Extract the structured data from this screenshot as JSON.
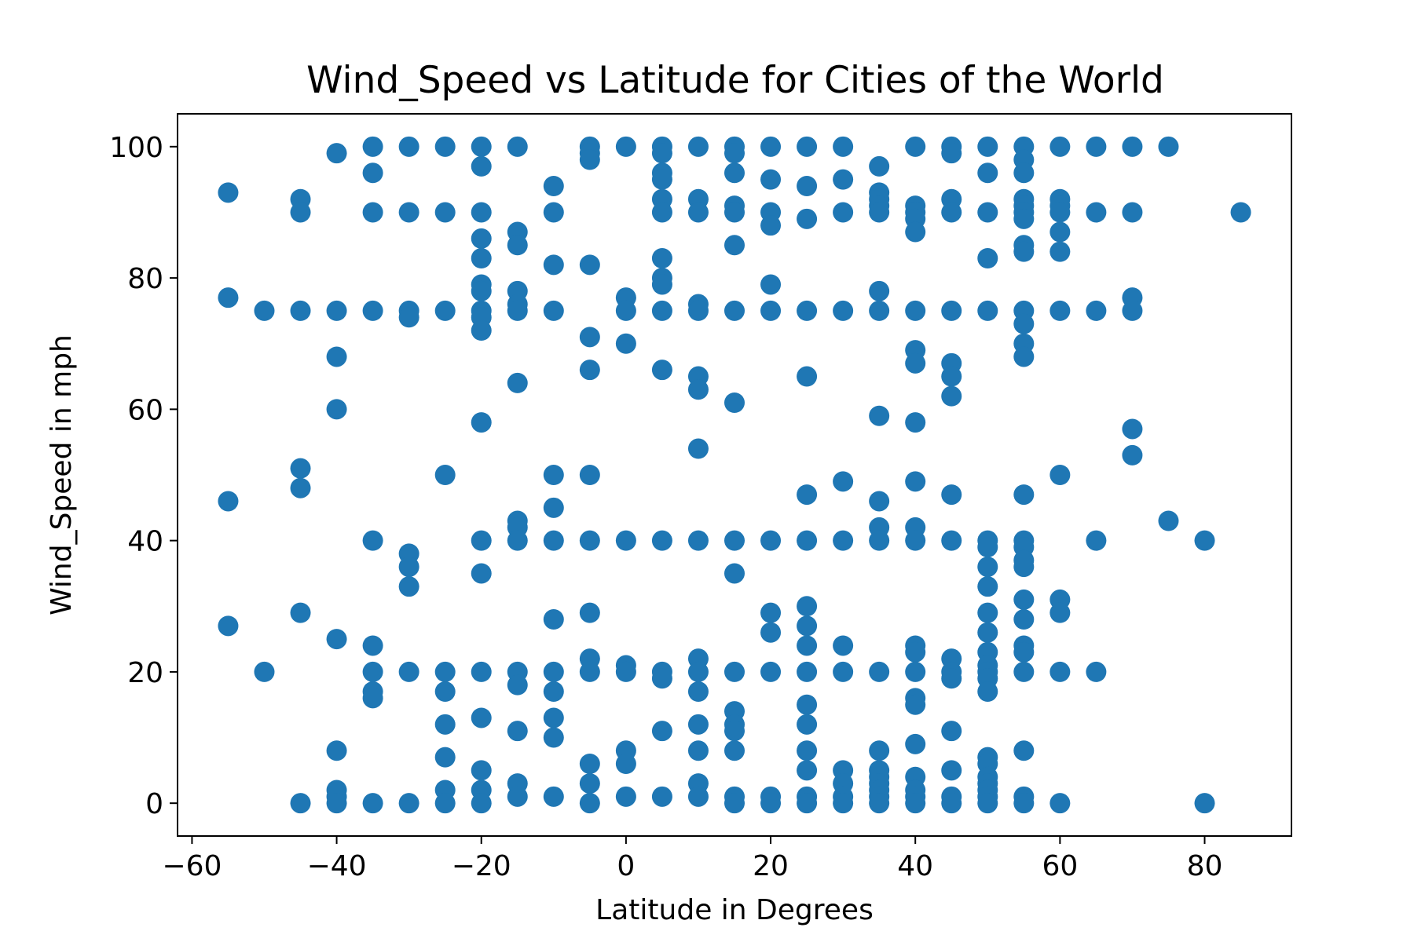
{
  "chart_data": {
    "type": "scatter",
    "title": "Wind_Speed vs Latitude for Cities of the World",
    "xlabel": "Latitude in Degrees",
    "ylabel": "Wind_Speed in mph",
    "xlim": [
      -62,
      92
    ],
    "ylim": [
      -5,
      105
    ],
    "xticks": [
      -60,
      -40,
      -20,
      0,
      20,
      40,
      60,
      80
    ],
    "xtick_labels": [
      "−60",
      "−40",
      "−20",
      "0",
      "20",
      "40",
      "60",
      "80"
    ],
    "yticks": [
      0,
      20,
      40,
      60,
      80,
      100
    ],
    "ytick_labels": [
      "0",
      "20",
      "40",
      "60",
      "80",
      "100"
    ],
    "grid": false,
    "marker_color": "#1f77b4",
    "points": [
      [
        -55,
        93
      ],
      [
        -55,
        77
      ],
      [
        -55,
        46
      ],
      [
        -55,
        27
      ],
      [
        -50,
        75
      ],
      [
        -50,
        20
      ],
      [
        -45,
        92
      ],
      [
        -45,
        90
      ],
      [
        -45,
        75
      ],
      [
        -45,
        51
      ],
      [
        -45,
        48
      ],
      [
        -45,
        29
      ],
      [
        -45,
        0
      ],
      [
        -40,
        99
      ],
      [
        -40,
        75
      ],
      [
        -40,
        68
      ],
      [
        -40,
        60
      ],
      [
        -40,
        25
      ],
      [
        -40,
        8
      ],
      [
        -40,
        2
      ],
      [
        -40,
        1
      ],
      [
        -40,
        0
      ],
      [
        -35,
        100
      ],
      [
        -35,
        96
      ],
      [
        -35,
        90
      ],
      [
        -35,
        75
      ],
      [
        -35,
        40
      ],
      [
        -35,
        24
      ],
      [
        -35,
        20
      ],
      [
        -35,
        17
      ],
      [
        -35,
        16
      ],
      [
        -35,
        0
      ],
      [
        -30,
        100
      ],
      [
        -30,
        90
      ],
      [
        -30,
        75
      ],
      [
        -30,
        74
      ],
      [
        -30,
        38
      ],
      [
        -30,
        36
      ],
      [
        -30,
        33
      ],
      [
        -30,
        20
      ],
      [
        -30,
        0
      ],
      [
        -25,
        100
      ],
      [
        -25,
        90
      ],
      [
        -25,
        75
      ],
      [
        -25,
        50
      ],
      [
        -25,
        20
      ],
      [
        -25,
        17
      ],
      [
        -25,
        12
      ],
      [
        -25,
        7
      ],
      [
        -25,
        2
      ],
      [
        -25,
        0
      ],
      [
        -20,
        100
      ],
      [
        -20,
        97
      ],
      [
        -20,
        90
      ],
      [
        -20,
        86
      ],
      [
        -20,
        83
      ],
      [
        -20,
        79
      ],
      [
        -20,
        78
      ],
      [
        -20,
        75
      ],
      [
        -20,
        74
      ],
      [
        -20,
        72
      ],
      [
        -20,
        58
      ],
      [
        -20,
        40
      ],
      [
        -20,
        35
      ],
      [
        -20,
        20
      ],
      [
        -20,
        13
      ],
      [
        -20,
        5
      ],
      [
        -20,
        2
      ],
      [
        -20,
        0
      ],
      [
        -15,
        100
      ],
      [
        -15,
        87
      ],
      [
        -15,
        85
      ],
      [
        -15,
        78
      ],
      [
        -15,
        76
      ],
      [
        -15,
        75
      ],
      [
        -15,
        64
      ],
      [
        -15,
        43
      ],
      [
        -15,
        42
      ],
      [
        -15,
        40
      ],
      [
        -15,
        20
      ],
      [
        -15,
        18
      ],
      [
        -15,
        11
      ],
      [
        -15,
        3
      ],
      [
        -15,
        1
      ],
      [
        -10,
        94
      ],
      [
        -10,
        90
      ],
      [
        -10,
        82
      ],
      [
        -10,
        75
      ],
      [
        -10,
        50
      ],
      [
        -10,
        45
      ],
      [
        -10,
        40
      ],
      [
        -10,
        28
      ],
      [
        -10,
        20
      ],
      [
        -10,
        17
      ],
      [
        -10,
        13
      ],
      [
        -10,
        10
      ],
      [
        -10,
        1
      ],
      [
        -5,
        100
      ],
      [
        -5,
        99
      ],
      [
        -5,
        98
      ],
      [
        -5,
        82
      ],
      [
        -5,
        71
      ],
      [
        -5,
        66
      ],
      [
        -5,
        50
      ],
      [
        -5,
        40
      ],
      [
        -5,
        29
      ],
      [
        -5,
        22
      ],
      [
        -5,
        20
      ],
      [
        -5,
        6
      ],
      [
        -5,
        3
      ],
      [
        -5,
        0
      ],
      [
        0,
        100
      ],
      [
        0,
        77
      ],
      [
        0,
        75
      ],
      [
        0,
        70
      ],
      [
        0,
        40
      ],
      [
        0,
        21
      ],
      [
        0,
        20
      ],
      [
        0,
        8
      ],
      [
        0,
        6
      ],
      [
        0,
        1
      ],
      [
        5,
        100
      ],
      [
        5,
        99
      ],
      [
        5,
        96
      ],
      [
        5,
        95
      ],
      [
        5,
        92
      ],
      [
        5,
        90
      ],
      [
        5,
        83
      ],
      [
        5,
        80
      ],
      [
        5,
        79
      ],
      [
        5,
        75
      ],
      [
        5,
        66
      ],
      [
        5,
        40
      ],
      [
        5,
        20
      ],
      [
        5,
        19
      ],
      [
        5,
        11
      ],
      [
        5,
        1
      ],
      [
        10,
        100
      ],
      [
        10,
        92
      ],
      [
        10,
        90
      ],
      [
        10,
        76
      ],
      [
        10,
        75
      ],
      [
        10,
        65
      ],
      [
        10,
        63
      ],
      [
        10,
        54
      ],
      [
        10,
        40
      ],
      [
        10,
        22
      ],
      [
        10,
        20
      ],
      [
        10,
        17
      ],
      [
        10,
        12
      ],
      [
        10,
        8
      ],
      [
        10,
        3
      ],
      [
        10,
        1
      ],
      [
        15,
        100
      ],
      [
        15,
        99
      ],
      [
        15,
        96
      ],
      [
        15,
        91
      ],
      [
        15,
        90
      ],
      [
        15,
        85
      ],
      [
        15,
        75
      ],
      [
        15,
        61
      ],
      [
        15,
        40
      ],
      [
        15,
        35
      ],
      [
        15,
        20
      ],
      [
        15,
        14
      ],
      [
        15,
        12
      ],
      [
        15,
        11
      ],
      [
        15,
        8
      ],
      [
        15,
        1
      ],
      [
        15,
        0
      ],
      [
        20,
        100
      ],
      [
        20,
        95
      ],
      [
        20,
        90
      ],
      [
        20,
        88
      ],
      [
        20,
        79
      ],
      [
        20,
        75
      ],
      [
        20,
        40
      ],
      [
        20,
        29
      ],
      [
        20,
        26
      ],
      [
        20,
        20
      ],
      [
        20,
        1
      ],
      [
        20,
        0
      ],
      [
        25,
        100
      ],
      [
        25,
        94
      ],
      [
        25,
        89
      ],
      [
        25,
        75
      ],
      [
        25,
        65
      ],
      [
        25,
        47
      ],
      [
        25,
        40
      ],
      [
        25,
        30
      ],
      [
        25,
        27
      ],
      [
        25,
        24
      ],
      [
        25,
        20
      ],
      [
        25,
        15
      ],
      [
        25,
        12
      ],
      [
        25,
        8
      ],
      [
        25,
        5
      ],
      [
        25,
        1
      ],
      [
        25,
        0
      ],
      [
        30,
        100
      ],
      [
        30,
        95
      ],
      [
        30,
        90
      ],
      [
        30,
        75
      ],
      [
        30,
        49
      ],
      [
        30,
        40
      ],
      [
        30,
        24
      ],
      [
        30,
        20
      ],
      [
        30,
        5
      ],
      [
        30,
        3
      ],
      [
        30,
        1
      ],
      [
        30,
        0
      ],
      [
        35,
        97
      ],
      [
        35,
        93
      ],
      [
        35,
        92
      ],
      [
        35,
        91
      ],
      [
        35,
        90
      ],
      [
        35,
        78
      ],
      [
        35,
        75
      ],
      [
        35,
        59
      ],
      [
        35,
        46
      ],
      [
        35,
        42
      ],
      [
        35,
        40
      ],
      [
        35,
        20
      ],
      [
        35,
        8
      ],
      [
        35,
        5
      ],
      [
        35,
        4
      ],
      [
        35,
        3
      ],
      [
        35,
        2
      ],
      [
        35,
        1
      ],
      [
        35,
        0
      ],
      [
        40,
        100
      ],
      [
        40,
        91
      ],
      [
        40,
        90
      ],
      [
        40,
        89
      ],
      [
        40,
        87
      ],
      [
        40,
        75
      ],
      [
        40,
        69
      ],
      [
        40,
        67
      ],
      [
        40,
        58
      ],
      [
        40,
        49
      ],
      [
        40,
        42
      ],
      [
        40,
        40
      ],
      [
        40,
        24
      ],
      [
        40,
        23
      ],
      [
        40,
        20
      ],
      [
        40,
        16
      ],
      [
        40,
        15
      ],
      [
        40,
        9
      ],
      [
        40,
        4
      ],
      [
        40,
        2
      ],
      [
        40,
        1
      ],
      [
        40,
        0
      ],
      [
        45,
        100
      ],
      [
        45,
        99
      ],
      [
        45,
        92
      ],
      [
        45,
        90
      ],
      [
        45,
        75
      ],
      [
        45,
        67
      ],
      [
        45,
        65
      ],
      [
        45,
        62
      ],
      [
        45,
        47
      ],
      [
        45,
        40
      ],
      [
        45,
        22
      ],
      [
        45,
        20
      ],
      [
        45,
        19
      ],
      [
        45,
        11
      ],
      [
        45,
        5
      ],
      [
        45,
        1
      ],
      [
        45,
        0
      ],
      [
        50,
        100
      ],
      [
        50,
        96
      ],
      [
        50,
        90
      ],
      [
        50,
        83
      ],
      [
        50,
        75
      ],
      [
        50,
        40
      ],
      [
        50,
        39
      ],
      [
        50,
        36
      ],
      [
        50,
        33
      ],
      [
        50,
        29
      ],
      [
        50,
        26
      ],
      [
        50,
        23
      ],
      [
        50,
        21
      ],
      [
        50,
        20
      ],
      [
        50,
        19
      ],
      [
        50,
        17
      ],
      [
        50,
        7
      ],
      [
        50,
        6
      ],
      [
        50,
        4
      ],
      [
        50,
        3
      ],
      [
        50,
        2
      ],
      [
        50,
        1
      ],
      [
        50,
        0
      ],
      [
        55,
        100
      ],
      [
        55,
        98
      ],
      [
        55,
        96
      ],
      [
        55,
        92
      ],
      [
        55,
        91
      ],
      [
        55,
        90
      ],
      [
        55,
        89
      ],
      [
        55,
        85
      ],
      [
        55,
        84
      ],
      [
        55,
        75
      ],
      [
        55,
        73
      ],
      [
        55,
        70
      ],
      [
        55,
        68
      ],
      [
        55,
        47
      ],
      [
        55,
        40
      ],
      [
        55,
        39
      ],
      [
        55,
        37
      ],
      [
        55,
        36
      ],
      [
        55,
        31
      ],
      [
        55,
        28
      ],
      [
        55,
        24
      ],
      [
        55,
        23
      ],
      [
        55,
        20
      ],
      [
        55,
        8
      ],
      [
        55,
        1
      ],
      [
        55,
        0
      ],
      [
        60,
        100
      ],
      [
        60,
        92
      ],
      [
        60,
        91
      ],
      [
        60,
        90
      ],
      [
        60,
        87
      ],
      [
        60,
        84
      ],
      [
        60,
        75
      ],
      [
        60,
        50
      ],
      [
        60,
        31
      ],
      [
        60,
        29
      ],
      [
        60,
        20
      ],
      [
        60,
        0
      ],
      [
        65,
        100
      ],
      [
        65,
        90
      ],
      [
        65,
        75
      ],
      [
        65,
        40
      ],
      [
        65,
        20
      ],
      [
        70,
        100
      ],
      [
        70,
        90
      ],
      [
        70,
        77
      ],
      [
        70,
        75
      ],
      [
        70,
        57
      ],
      [
        70,
        53
      ],
      [
        75,
        100
      ],
      [
        75,
        43
      ],
      [
        80,
        40
      ],
      [
        80,
        0
      ],
      [
        85,
        90
      ]
    ]
  }
}
